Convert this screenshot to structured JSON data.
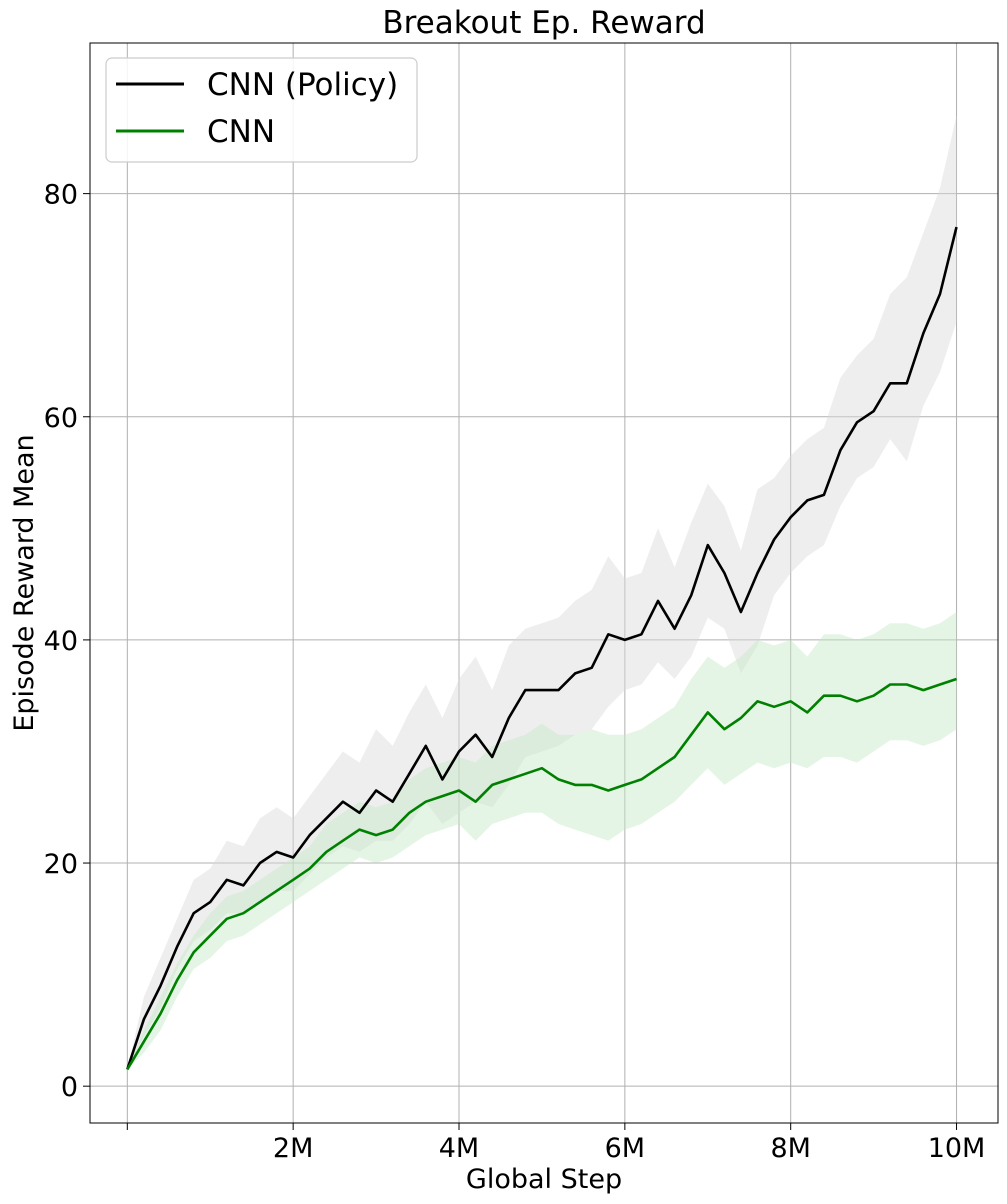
{
  "chart_data": {
    "type": "line",
    "title": "Breakout Ep. Reward",
    "xlabel": "Global Step",
    "ylabel": "Episode Reward Mean",
    "xlim": [
      -0.45,
      10.5
    ],
    "ylim": [
      -3.3,
      93.5
    ],
    "grid": true,
    "legend_position": "top-left",
    "x_ticks": [
      {
        "value": 0,
        "label": ""
      },
      {
        "value": 2,
        "label": "2M"
      },
      {
        "value": 4,
        "label": "4M"
      },
      {
        "value": 6,
        "label": "6M"
      },
      {
        "value": 8,
        "label": "8M"
      },
      {
        "value": 10,
        "label": "10M"
      }
    ],
    "y_ticks": [
      {
        "value": 0,
        "label": "0"
      },
      {
        "value": 20,
        "label": "20"
      },
      {
        "value": 40,
        "label": "40"
      },
      {
        "value": 60,
        "label": "60"
      },
      {
        "value": 80,
        "label": "80"
      }
    ],
    "x_unit": "million steps",
    "series": [
      {
        "name": "CNN (Policy)",
        "color": "#000000",
        "band_color": "#d9d9d9",
        "x": [
          0,
          0.2,
          0.4,
          0.6,
          0.8,
          1.0,
          1.2,
          1.4,
          1.6,
          1.8,
          2.0,
          2.2,
          2.4,
          2.6,
          2.8,
          3.0,
          3.2,
          3.4,
          3.6,
          3.8,
          4.0,
          4.2,
          4.4,
          4.6,
          4.8,
          5.0,
          5.2,
          5.4,
          5.6,
          5.8,
          6.0,
          6.2,
          6.4,
          6.6,
          6.8,
          7.0,
          7.2,
          7.4,
          7.6,
          7.8,
          8.0,
          8.2,
          8.4,
          8.6,
          8.8,
          9.0,
          9.2,
          9.4,
          9.6,
          9.8,
          10.0
        ],
        "values": [
          1.5,
          6.0,
          9.0,
          12.5,
          15.5,
          16.5,
          18.5,
          18.0,
          20.0,
          21.0,
          20.5,
          22.5,
          24.0,
          25.5,
          24.5,
          26.5,
          25.5,
          28.0,
          30.5,
          27.5,
          30.0,
          31.5,
          29.5,
          33.0,
          35.5,
          35.5,
          35.5,
          37.0,
          37.5,
          40.5,
          40.0,
          40.5,
          43.5,
          41.0,
          44.0,
          48.5,
          46.0,
          42.5,
          46.0,
          49.0,
          51.0,
          52.5,
          53.0,
          57.0,
          59.5,
          60.5,
          63.0,
          63.0,
          67.5,
          71.0,
          77.0
        ],
        "band_lower": [
          1.5,
          4.5,
          7.0,
          10.5,
          13.0,
          14.0,
          15.5,
          15.5,
          16.5,
          17.5,
          17.5,
          19.0,
          20.5,
          21.5,
          21.0,
          22.0,
          22.0,
          23.5,
          25.5,
          23.5,
          24.5,
          25.5,
          25.0,
          27.0,
          29.5,
          30.0,
          30.5,
          31.5,
          32.0,
          34.0,
          35.5,
          36.0,
          38.0,
          36.5,
          38.5,
          42.0,
          41.0,
          37.0,
          39.5,
          44.0,
          46.0,
          47.5,
          48.5,
          52.0,
          54.5,
          55.5,
          58.0,
          56.0,
          61.0,
          64.0,
          68.5
        ],
        "band_upper": [
          1.5,
          8.0,
          11.5,
          15.0,
          18.5,
          19.5,
          22.0,
          21.5,
          24.0,
          25.0,
          24.0,
          26.0,
          28.0,
          30.0,
          29.0,
          32.0,
          30.5,
          33.5,
          36.0,
          33.0,
          36.5,
          38.5,
          35.5,
          39.5,
          41.0,
          41.5,
          42.0,
          43.5,
          44.5,
          47.5,
          45.5,
          46.0,
          50.0,
          46.5,
          50.5,
          54.0,
          52.0,
          48.0,
          53.5,
          54.5,
          56.5,
          58.0,
          59.0,
          63.5,
          65.5,
          67.0,
          71.0,
          72.5,
          76.5,
          80.5,
          87.0
        ]
      },
      {
        "name": "CNN",
        "color": "#008000",
        "band_color": "#c6e8c6",
        "x": [
          0,
          0.2,
          0.4,
          0.6,
          0.8,
          1.0,
          1.2,
          1.4,
          1.6,
          1.8,
          2.0,
          2.2,
          2.4,
          2.6,
          2.8,
          3.0,
          3.2,
          3.4,
          3.6,
          3.8,
          4.0,
          4.2,
          4.4,
          4.6,
          4.8,
          5.0,
          5.2,
          5.4,
          5.6,
          5.8,
          6.0,
          6.2,
          6.4,
          6.6,
          6.8,
          7.0,
          7.2,
          7.4,
          7.6,
          7.8,
          8.0,
          8.2,
          8.4,
          8.6,
          8.8,
          9.0,
          9.2,
          9.4,
          9.6,
          9.8,
          10.0
        ],
        "values": [
          1.5,
          4.0,
          6.5,
          9.5,
          12.0,
          13.5,
          15.0,
          15.5,
          16.5,
          17.5,
          18.5,
          19.5,
          21.0,
          22.0,
          23.0,
          22.5,
          23.0,
          24.5,
          25.5,
          26.0,
          26.5,
          25.5,
          27.0,
          27.5,
          28.0,
          28.5,
          27.5,
          27.0,
          27.0,
          26.5,
          27.0,
          27.5,
          28.5,
          29.5,
          31.5,
          33.5,
          32.0,
          33.0,
          34.5,
          34.0,
          34.5,
          33.5,
          35.0,
          35.0,
          34.5,
          35.0,
          36.0,
          36.0,
          35.5,
          36.0,
          36.5
        ],
        "band_lower": [
          1.5,
          3.0,
          5.0,
          8.0,
          10.5,
          11.5,
          13.0,
          13.5,
          14.5,
          15.5,
          16.5,
          17.5,
          18.5,
          19.5,
          20.5,
          20.0,
          20.5,
          21.5,
          22.5,
          23.0,
          23.5,
          22.0,
          23.5,
          24.0,
          24.5,
          24.5,
          23.5,
          23.0,
          22.5,
          22.0,
          23.0,
          23.5,
          24.5,
          25.5,
          27.0,
          28.5,
          27.0,
          28.0,
          29.0,
          28.5,
          29.0,
          28.5,
          29.5,
          29.5,
          29.0,
          30.0,
          31.0,
          31.0,
          30.5,
          31.0,
          32.0
        ],
        "band_upper": [
          1.5,
          5.0,
          8.0,
          11.0,
          13.5,
          15.5,
          17.0,
          17.5,
          18.5,
          19.5,
          20.5,
          21.5,
          23.5,
          24.5,
          25.5,
          25.0,
          25.5,
          27.5,
          28.5,
          29.0,
          29.5,
          29.0,
          30.5,
          31.0,
          31.5,
          32.5,
          31.5,
          31.5,
          32.0,
          31.5,
          31.5,
          32.0,
          33.0,
          34.0,
          36.5,
          38.5,
          37.5,
          38.5,
          40.0,
          39.5,
          40.0,
          38.5,
          40.5,
          40.5,
          40.0,
          40.5,
          41.5,
          41.5,
          41.0,
          41.5,
          42.5
        ]
      }
    ]
  }
}
